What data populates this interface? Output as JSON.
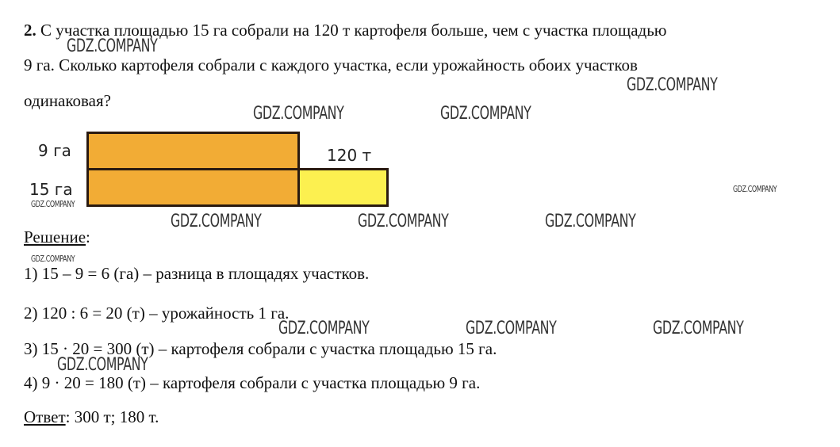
{
  "problem": {
    "number": "2.",
    "line1": "С участка площадью 15 га собрали на 120 т картофеля больше, чем с участка площадью",
    "line2": "9 га. Сколько картофеля собрали с каждого участка, если урожайность обоих участков",
    "line3": "одинаковая?"
  },
  "diagram": {
    "label_top": "9 га",
    "label_bottom": "15 га",
    "label_extra": "120 т",
    "colors": {
      "base": "#F2AC35",
      "extra": "#FCF050",
      "border": "#2a1a10"
    }
  },
  "solution": {
    "heading": "Решение",
    "heading_colon": ":",
    "steps": [
      "1) 15 – 9 = 6 (га) – разница в площадях участков.",
      "2) 120 : 6 = 20 (т) – урожайность 1 га.",
      "3) 15 · 20 = 300 (т) – картофеля собрали с участка площадью 15 га.",
      "4) 9 · 20 = 180 (т) – картофеля собрали с участка площадью 9 га."
    ],
    "answer_label": "Ответ",
    "answer_value": ": 300 т; 180 т."
  },
  "watermark": "GDZ.COMPANY"
}
